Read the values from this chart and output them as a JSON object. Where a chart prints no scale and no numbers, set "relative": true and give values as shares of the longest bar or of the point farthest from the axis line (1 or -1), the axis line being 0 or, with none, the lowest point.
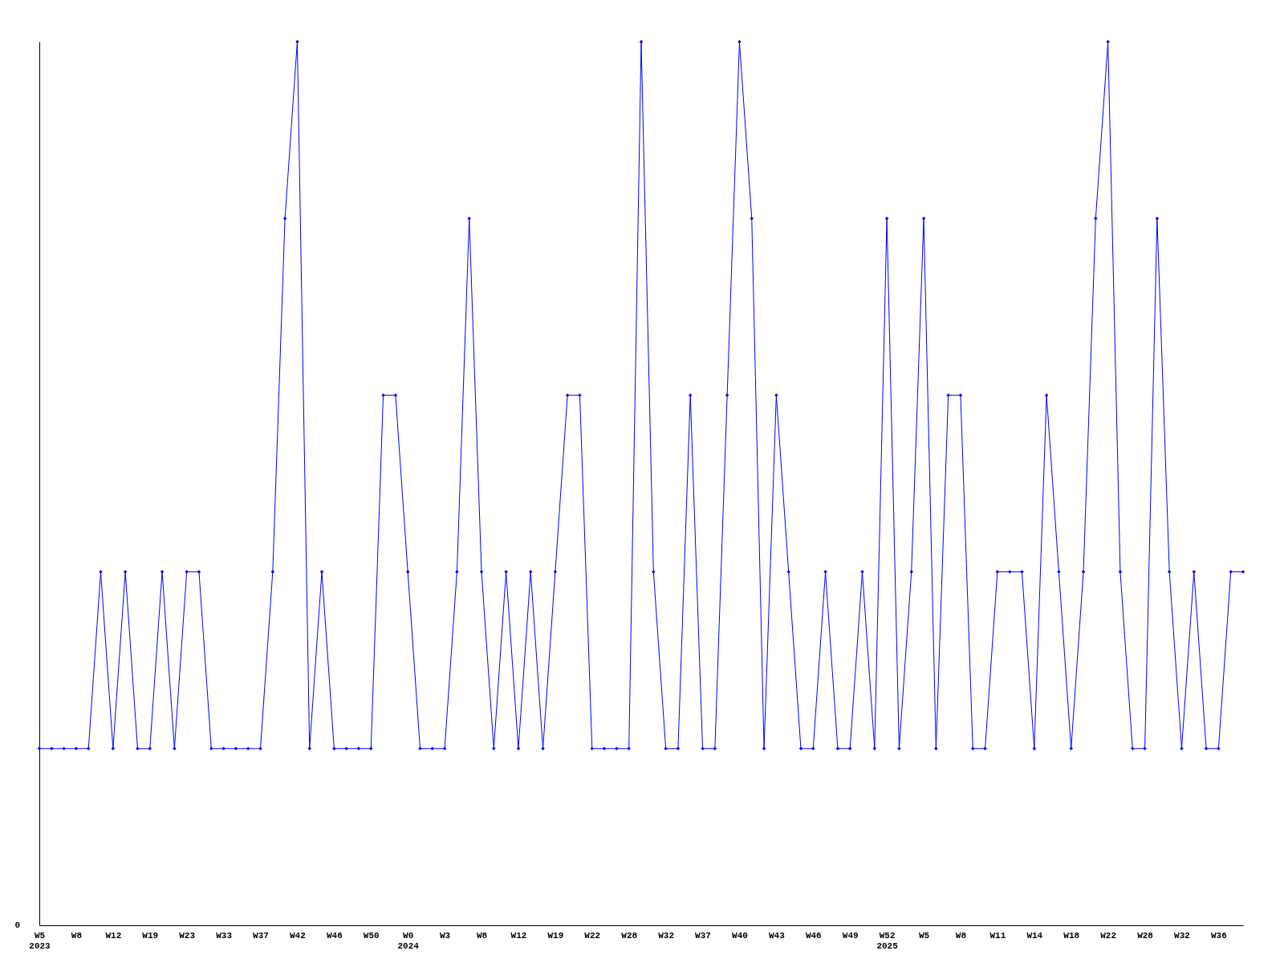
{
  "chart_data": {
    "type": "line",
    "relative": true,
    "marker": "diamond",
    "line_style": "solid",
    "grid": false,
    "annotations": [
      "0"
    ],
    "categories": [
      "W5\n2023",
      null,
      null,
      "W8",
      null,
      null,
      "W12",
      null,
      null,
      "W19",
      null,
      null,
      "W23",
      null,
      null,
      "W33",
      null,
      null,
      "W37",
      null,
      null,
      "W42",
      null,
      null,
      "W46",
      null,
      null,
      "W50",
      null,
      null,
      "W0\n2024",
      null,
      null,
      "W3",
      null,
      null,
      "W8",
      null,
      null,
      "W12",
      null,
      null,
      "W19",
      null,
      null,
      "W22",
      null,
      null,
      "W28",
      null,
      null,
      "W32",
      null,
      null,
      "W37",
      null,
      null,
      "W40",
      null,
      null,
      "W43",
      null,
      null,
      "W46",
      null,
      null,
      "W49",
      null,
      null,
      "W52\n2025",
      null,
      null,
      "W5",
      null,
      null,
      "W8",
      null,
      null,
      "W11",
      null,
      null,
      "W14",
      null,
      null,
      "W18",
      null,
      null,
      "W22",
      null,
      null,
      "W28",
      null,
      null,
      "W32",
      null,
      null,
      "W36",
      null,
      null
    ],
    "series": [
      {
        "color": "#0000ff",
        "values": [
          0.2,
          0.2,
          0.2,
          0.2,
          0.2,
          0.4,
          0.2,
          0.4,
          0.2,
          0.2,
          0.4,
          0.2,
          0.4,
          0.4,
          0.2,
          0.2,
          0.2,
          0.2,
          0.2,
          0.4,
          0.8,
          1,
          0.2,
          0.4,
          0.2,
          0.2,
          0.2,
          0.2,
          0.6,
          0.6,
          0.4,
          0.2,
          0.2,
          0.2,
          0.4,
          0.8,
          0.4,
          0.2,
          0.4,
          0.2,
          0.4,
          0.2,
          0.4,
          0.6,
          0.6,
          0.2,
          0.2,
          0.2,
          0.2,
          1,
          0.4,
          0.2,
          0.2,
          0.6,
          0.2,
          0.2,
          0.6,
          1,
          0.8,
          0.2,
          0.6,
          0.4,
          0.2,
          0.2,
          0.4,
          0.2,
          0.2,
          0.4,
          0.2,
          0.8,
          0.2,
          0.4,
          0.8,
          0.2,
          0.6,
          0.6,
          0.2,
          0.2,
          0.4,
          0.4,
          0.4,
          0.2,
          0.6,
          0.4,
          0.2,
          0.4,
          0.8,
          1,
          0.4,
          0.2,
          0.2,
          0.8,
          0.4,
          0.2,
          0.4,
          0.2,
          0.2,
          0.4,
          0.4
        ]
      }
    ]
  }
}
